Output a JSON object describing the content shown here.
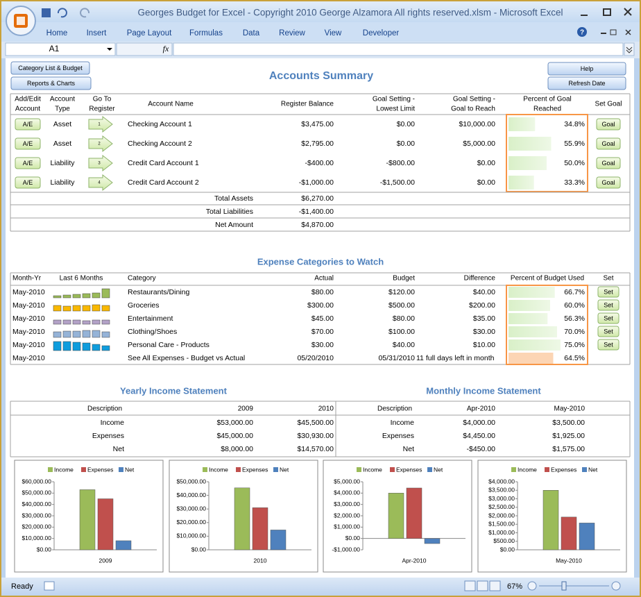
{
  "window": {
    "title": "Georges Budget for Excel - Copyright 2010  George Alzamora  All rights reserved.xlsm - Microsoft Excel",
    "tabs": [
      "Home",
      "Insert",
      "Page Layout",
      "Formulas",
      "Data",
      "Review",
      "View",
      "Developer"
    ],
    "name_box": "A1",
    "fx": "fx"
  },
  "buttons": {
    "category_list": "Category List & Budget",
    "reports": "Reports & Charts",
    "help": "Help",
    "refresh": "Refresh Date"
  },
  "accounts": {
    "title": "Accounts Summary",
    "headers": [
      [
        "Add/Edit",
        "Account"
      ],
      [
        "Account",
        "Type"
      ],
      [
        "Go To",
        "Register"
      ],
      [
        "Account Name"
      ],
      [
        "Register Balance"
      ],
      [
        "Goal Setting -",
        "Lowest Limit"
      ],
      [
        "Goal Setting -",
        "Goal to Reach"
      ],
      [
        "Percent of Goal",
        "Reached"
      ],
      [
        "Set Goal"
      ]
    ],
    "rows": [
      {
        "edit": "A/E",
        "type": "Asset",
        "register": "1",
        "name": "Checking Account 1",
        "balance": "$3,475.00",
        "lowest": "$0.00",
        "goal": "$10,000.00",
        "percent": {
          "value": 34.8,
          "label": "34.8%"
        },
        "set": "Goal"
      },
      {
        "edit": "A/E",
        "type": "Asset",
        "register": "2",
        "name": "Checking Account 2",
        "balance": "$2,795.00",
        "lowest": "$0.00",
        "goal": "$5,000.00",
        "percent": {
          "value": 55.9,
          "label": "55.9%"
        },
        "set": "Goal"
      },
      {
        "edit": "A/E",
        "type": "Liability",
        "register": "3",
        "name": "Credit Card Account 1",
        "balance": "-$400.00",
        "lowest": "-$800.00",
        "goal": "$0.00",
        "percent": {
          "value": 50.0,
          "label": "50.0%"
        },
        "set": "Goal"
      },
      {
        "edit": "A/E",
        "type": "Liability",
        "register": "4",
        "name": "Credit Card Account 2",
        "balance": "-$1,000.00",
        "lowest": "-$1,500.00",
        "goal": "$0.00",
        "percent": {
          "value": 33.3,
          "label": "33.3%"
        },
        "set": "Goal"
      }
    ],
    "totals": [
      {
        "label": "Total Assets",
        "value": "$6,270.00"
      },
      {
        "label": "Total Liabilities",
        "value": "-$1,400.00"
      },
      {
        "label": "Net Amount",
        "value": "$4,870.00"
      }
    ]
  },
  "expenses": {
    "title": "Expense Categories to Watch",
    "headers": [
      "Month-Yr",
      "Last 6 Months",
      "Category",
      "Actual",
      "Budget",
      "Difference",
      "Percent of Budget Used",
      "Set"
    ],
    "rows": [
      {
        "month": "May-2010",
        "last6": [
          3,
          4,
          5,
          6,
          7,
          13
        ],
        "spark_color": "#9bbb59",
        "category": "Restaurants/Dining",
        "actual": "$80.00",
        "budget": "$120.00",
        "difference": "$40.00",
        "percent": {
          "value": 66.7,
          "label": "66.7%"
        },
        "label_color": "#e00000",
        "set": "Set"
      },
      {
        "month": "May-2010",
        "last6": [
          8,
          7,
          8,
          8,
          9,
          8
        ],
        "spark_color": "#f9b800",
        "category": "Groceries",
        "actual": "$300.00",
        "budget": "$500.00",
        "difference": "$200.00",
        "percent": {
          "value": 60.0,
          "label": "60.0%"
        },
        "label_color": "#000000",
        "set": "Set"
      },
      {
        "month": "May-2010",
        "last6": [
          6,
          6,
          6,
          5,
          6,
          6
        ],
        "spark_color": "#b3a2c7",
        "category": "Entertainment",
        "actual": "$45.00",
        "budget": "$80.00",
        "difference": "$35.00",
        "percent": {
          "value": 56.3,
          "label": "56.3%"
        },
        "label_color": "#000000",
        "set": "Set"
      },
      {
        "month": "May-2010",
        "last6": [
          8,
          9,
          9,
          10,
          10,
          8
        ],
        "spark_color": "#95b3d7",
        "category": "Clothing/Shoes",
        "actual": "$70.00",
        "budget": "$100.00",
        "difference": "$30.00",
        "percent": {
          "value": 70.0,
          "label": "70.0%"
        },
        "label_color": "#e00000",
        "set": "Set"
      },
      {
        "month": "May-2010",
        "last6": [
          13,
          13,
          12,
          11,
          9,
          7
        ],
        "spark_color": "#0f9ddd",
        "category": "Personal Care - Products",
        "actual": "$30.00",
        "budget": "$40.00",
        "difference": "$10.00",
        "percent": {
          "value": 75.0,
          "label": "75.0%"
        },
        "label_color": "#e00000",
        "set": "Set"
      }
    ],
    "summary": {
      "month": "May-2010",
      "category": "See All Expenses - Budget vs Actual",
      "actual": "05/20/2010",
      "budget": "05/31/2010",
      "difference": "11 full days left in month",
      "percent": {
        "value": 64.5,
        "label": "64.5%"
      }
    }
  },
  "income": {
    "yearly": {
      "title": "Yearly Income Statement",
      "headers": [
        "Description",
        "2009",
        "2010"
      ],
      "rows": [
        [
          "Income",
          "$53,000.00",
          "$45,500.00"
        ],
        [
          "Expenses",
          "$45,000.00",
          "$30,930.00"
        ],
        [
          "Net",
          "$8,000.00",
          "$14,570.00"
        ]
      ]
    },
    "monthly": {
      "title": "Monthly Income Statement",
      "headers": [
        "Description",
        "Apr-2010",
        "May-2010"
      ],
      "rows": [
        [
          "Income",
          "$4,000.00",
          "$3,500.00"
        ],
        [
          "Expenses",
          "$4,450.00",
          "$1,925.00"
        ],
        [
          "Net",
          "-$450.00",
          "$1,575.00"
        ]
      ]
    }
  },
  "status": {
    "ready": "Ready",
    "zoom": "67%"
  },
  "chart_data": [
    {
      "type": "bar",
      "categories": [
        "2009"
      ],
      "legend": "top",
      "series": [
        {
          "name": "Income",
          "color": "#9bbb59",
          "values": [
            53000
          ]
        },
        {
          "name": "Expenses",
          "color": "#c0504d",
          "values": [
            45000
          ]
        },
        {
          "name": "Net",
          "color": "#4f81bd",
          "values": [
            8000
          ]
        }
      ],
      "ylim": [
        0,
        60000
      ],
      "yticks": [
        {
          "value": 0,
          "label": "$0.00"
        },
        {
          "value": 10000,
          "label": "$10,000.00"
        },
        {
          "value": 20000,
          "label": "$20,000.00"
        },
        {
          "value": 30000,
          "label": "$30,000.00"
        },
        {
          "value": 40000,
          "label": "$40,000.00"
        },
        {
          "value": 50000,
          "label": "$50,000.00"
        },
        {
          "value": 60000,
          "label": "$60,000.00"
        }
      ]
    },
    {
      "type": "bar",
      "categories": [
        "2010"
      ],
      "legend": "top",
      "series": [
        {
          "name": "Income",
          "color": "#9bbb59",
          "values": [
            45500
          ]
        },
        {
          "name": "Expenses",
          "color": "#c0504d",
          "values": [
            30930
          ]
        },
        {
          "name": "Net",
          "color": "#4f81bd",
          "values": [
            14570
          ]
        }
      ],
      "ylim": [
        0,
        50000
      ],
      "yticks": [
        {
          "value": 0,
          "label": "$0.00"
        },
        {
          "value": 10000,
          "label": "$10,000.00"
        },
        {
          "value": 20000,
          "label": "$20,000.00"
        },
        {
          "value": 30000,
          "label": "$30,000.00"
        },
        {
          "value": 40000,
          "label": "$40,000.00"
        },
        {
          "value": 50000,
          "label": "$50,000.00"
        }
      ]
    },
    {
      "type": "bar",
      "categories": [
        "Apr-2010"
      ],
      "legend": "top",
      "series": [
        {
          "name": "Income",
          "color": "#9bbb59",
          "values": [
            4000
          ]
        },
        {
          "name": "Expenses",
          "color": "#c0504d",
          "values": [
            4450
          ]
        },
        {
          "name": "Net",
          "color": "#4f81bd",
          "values": [
            -450
          ]
        }
      ],
      "ylim": [
        -1000,
        5000
      ],
      "yticks": [
        {
          "value": -1000,
          "label": "-$1,000.00"
        },
        {
          "value": 0,
          "label": "$0.00"
        },
        {
          "value": 1000,
          "label": "$1,000.00"
        },
        {
          "value": 2000,
          "label": "$2,000.00"
        },
        {
          "value": 3000,
          "label": "$3,000.00"
        },
        {
          "value": 4000,
          "label": "$4,000.00"
        },
        {
          "value": 5000,
          "label": "$5,000.00"
        }
      ]
    },
    {
      "type": "bar",
      "categories": [
        "May-2010"
      ],
      "legend": "top",
      "series": [
        {
          "name": "Income",
          "color": "#9bbb59",
          "values": [
            3500
          ]
        },
        {
          "name": "Expenses",
          "color": "#c0504d",
          "values": [
            1925
          ]
        },
        {
          "name": "Net",
          "color": "#4f81bd",
          "values": [
            1575
          ]
        }
      ],
      "ylim": [
        0,
        4000
      ],
      "yticks": [
        {
          "value": 0,
          "label": "$0.00"
        },
        {
          "value": 500,
          "label": "$500.00"
        },
        {
          "value": 1000,
          "label": "$1,000.00"
        },
        {
          "value": 1500,
          "label": "$1,500.00"
        },
        {
          "value": 2000,
          "label": "$2,000.00"
        },
        {
          "value": 2500,
          "label": "$2,500.00"
        },
        {
          "value": 3000,
          "label": "$3,000.00"
        },
        {
          "value": 3500,
          "label": "$3,500.00"
        },
        {
          "value": 4000,
          "label": "$4,000.00"
        }
      ]
    }
  ]
}
